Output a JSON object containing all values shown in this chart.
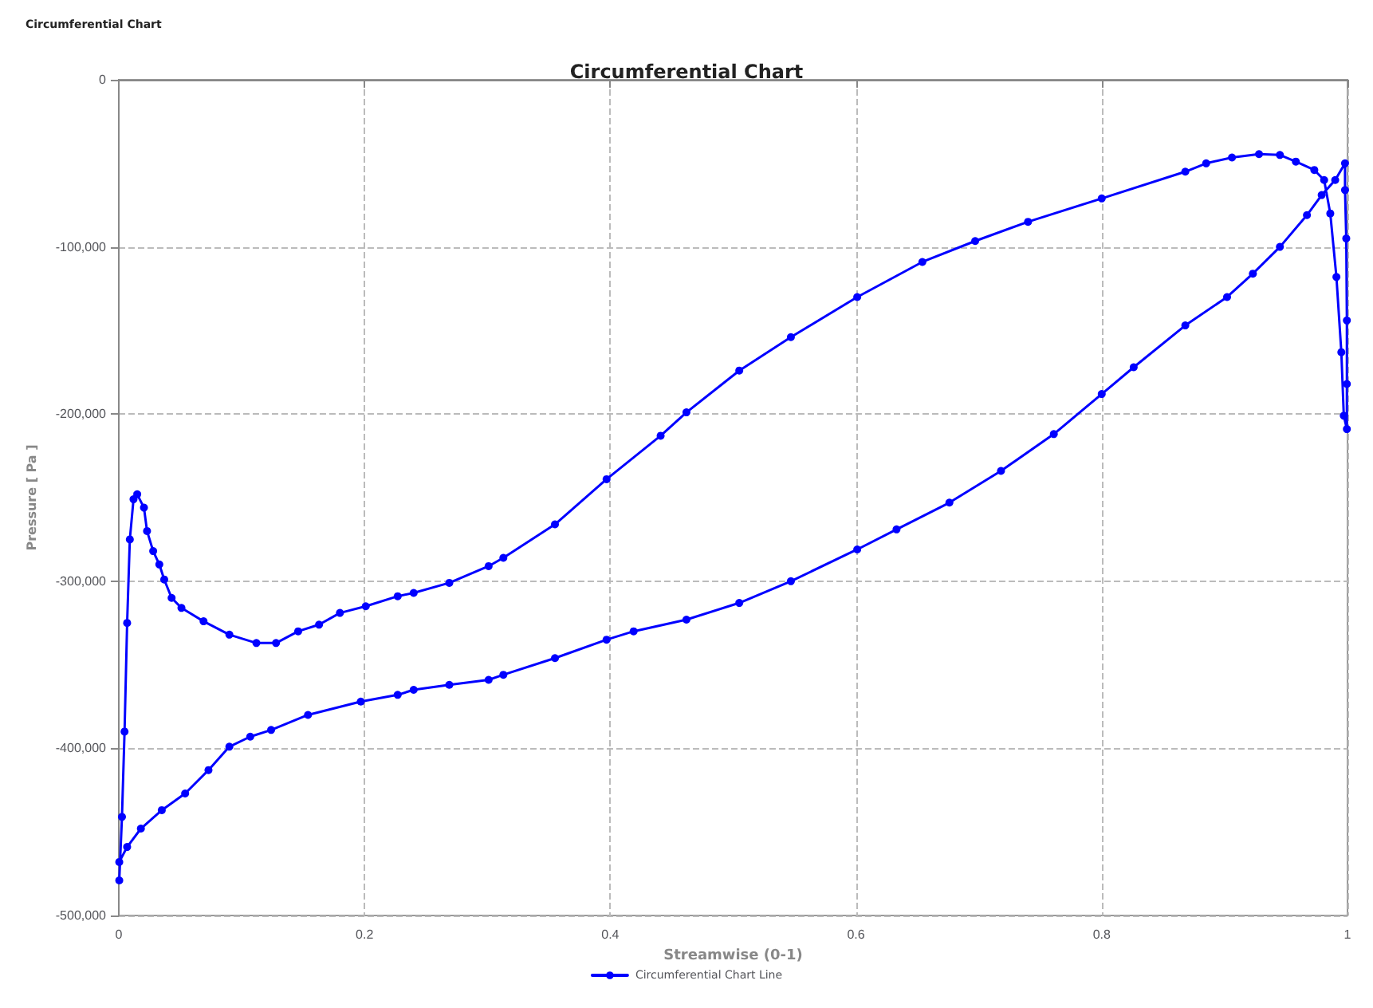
{
  "chart_data": {
    "type": "line",
    "title": "Circumferential Chart",
    "annotations": [
      "Circumferential Chart"
    ],
    "xlabel": "Streamwise (0-1)",
    "ylabel": "Pressure [ Pa ]",
    "xlim": [
      0,
      1
    ],
    "xticks": [
      0,
      0.2,
      0.4,
      0.6,
      0.8,
      1
    ],
    "ylim": [
      -500000,
      0
    ],
    "yticks": [
      {
        "value": -500000,
        "label": "-500,000"
      },
      {
        "value": -400000,
        "label": "-400,000"
      },
      {
        "value": -300000,
        "label": "-300,000"
      },
      {
        "value": -200000,
        "label": "-200,000"
      },
      {
        "value": -100000,
        "label": "-100,000"
      },
      0
    ],
    "grid": true,
    "legend": "bottom",
    "marker": "circle",
    "line_style": "solid",
    "series": [
      {
        "name": "Circumferential Chart Line",
        "color": "#0000ff",
        "x": [
          0.0004,
          0.0026,
          0.0047,
          0.0068,
          0.009,
          0.012,
          0.015,
          0.0205,
          0.023,
          0.028,
          0.033,
          0.037,
          0.043,
          0.051,
          0.069,
          0.09,
          0.112,
          0.128,
          0.146,
          0.163,
          0.18,
          0.201,
          0.227,
          0.24,
          0.269,
          0.301,
          0.313,
          0.355,
          0.397,
          0.441,
          0.462,
          0.505,
          0.547,
          0.601,
          0.654,
          0.697,
          0.74,
          0.8,
          0.868,
          0.885,
          0.906,
          0.928,
          0.945,
          0.958,
          0.973,
          0.981,
          0.986,
          0.991,
          0.995,
          0.997,
          0.9995,
          0.9995,
          0.9995,
          0.999,
          0.998,
          0.998,
          0.99,
          0.979,
          0.967,
          0.945,
          0.923,
          0.902,
          0.868,
          0.826,
          0.8,
          0.761,
          0.718,
          0.676,
          0.633,
          0.601,
          0.547,
          0.505,
          0.462,
          0.419,
          0.397,
          0.355,
          0.313,
          0.301,
          0.269,
          0.24,
          0.227,
          0.197,
          0.154,
          0.124,
          0.107,
          0.09,
          0.073,
          0.054,
          0.035,
          0.018,
          0.0068,
          0.0004
        ],
        "values": [
          -479000,
          -441000,
          -390000,
          -325000,
          -275000,
          -251000,
          -248000,
          -256000,
          -270000,
          -282000,
          -290000,
          -299000,
          -310000,
          -316000,
          -324000,
          -332000,
          -337000,
          -337000,
          -330000,
          -326000,
          -319000,
          -315000,
          -309000,
          -307000,
          -301000,
          -291000,
          -286000,
          -266000,
          -239000,
          -213000,
          -199000,
          -174000,
          -154000,
          -130000,
          -109000,
          -96500,
          -85000,
          -71000,
          -55000,
          -50000,
          -46500,
          -44500,
          -45000,
          -49000,
          -54000,
          -60000,
          -80000,
          -118000,
          -163000,
          -201000,
          -209000,
          -182000,
          -144000,
          -95000,
          -66000,
          -50000,
          -60000,
          -69000,
          -81000,
          -100000,
          -116000,
          -130000,
          -147000,
          -172000,
          -188000,
          -212000,
          -234000,
          -253000,
          -269000,
          -281000,
          -300000,
          -313000,
          -323000,
          -330000,
          -335000,
          -346000,
          -356000,
          -359000,
          -362000,
          -365000,
          -368000,
          -372000,
          -380000,
          -389000,
          -393000,
          -399000,
          -413000,
          -427000,
          -437000,
          -448000,
          -459000,
          -468000
        ]
      }
    ]
  }
}
